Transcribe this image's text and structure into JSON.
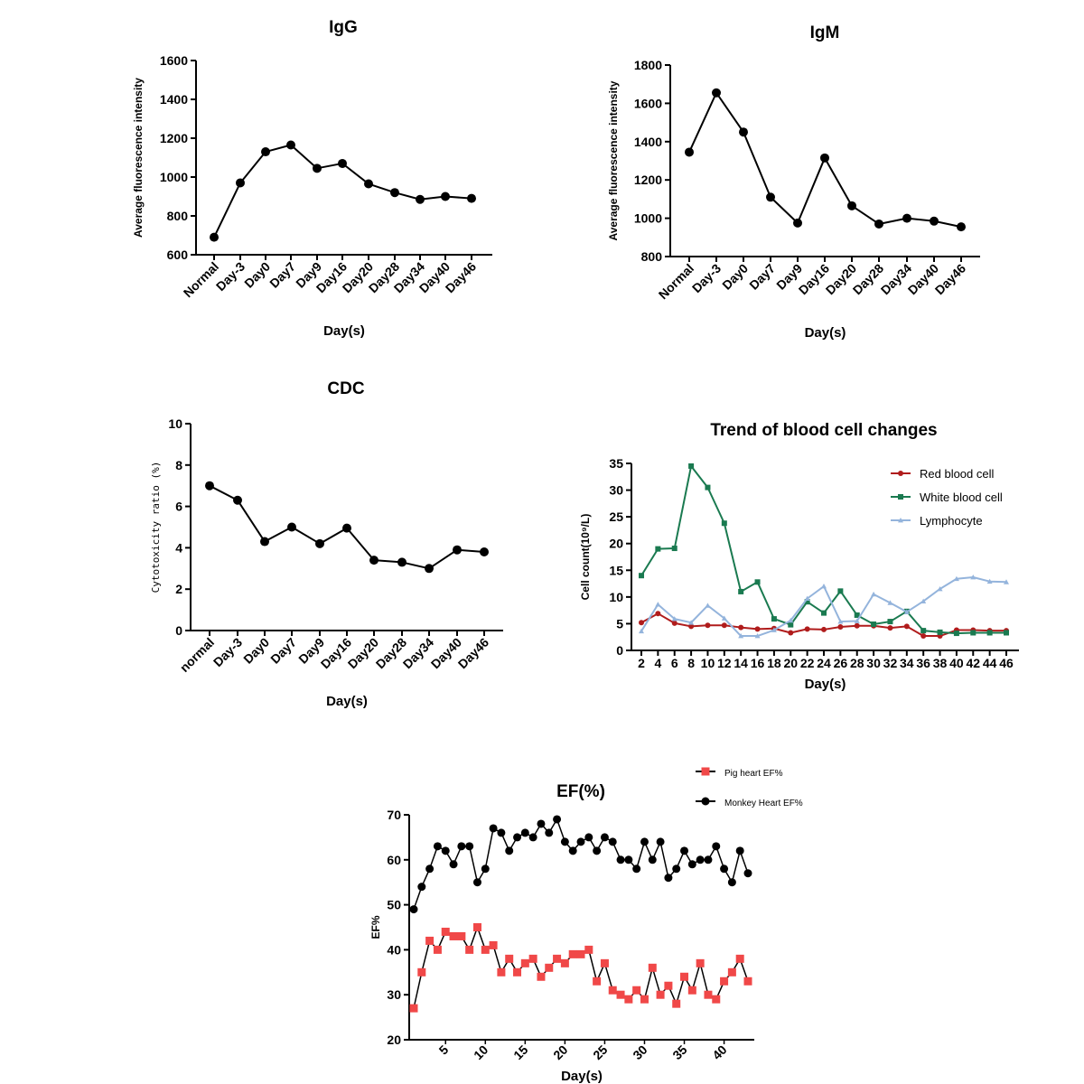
{
  "chart_data": [
    {
      "id": "igg",
      "type": "line",
      "title": "IgG",
      "xlabel": "Day(s)",
      "ylabel": "Average fluorescence intensity",
      "categories": [
        "Normal",
        "Day-3",
        "Day0",
        "Day7",
        "Day9",
        "Day16",
        "Day20",
        "Day28",
        "Day34",
        "Day40",
        "Day46"
      ],
      "values": [
        690,
        970,
        1130,
        1165,
        1045,
        1070,
        965,
        920,
        885,
        900,
        890
      ],
      "ylim": [
        600,
        1600
      ],
      "yticks": [
        600,
        800,
        1000,
        1200,
        1400,
        1600
      ],
      "grid": false,
      "color": "#000000"
    },
    {
      "id": "igm",
      "type": "line",
      "title": "IgM",
      "xlabel": "Day(s)",
      "ylabel": "Average fluorescence intensity",
      "categories": [
        "Normal",
        "Day-3",
        "Day0",
        "Day7",
        "Day9",
        "Day16",
        "Day20",
        "Day28",
        "Day34",
        "Day40",
        "Day46"
      ],
      "values": [
        1345,
        1655,
        1450,
        1110,
        975,
        1315,
        1065,
        970,
        1000,
        985,
        955
      ],
      "ylim": [
        800,
        1800
      ],
      "yticks": [
        800,
        1000,
        1200,
        1400,
        1600,
        1800
      ],
      "grid": false,
      "color": "#000000"
    },
    {
      "id": "cdc",
      "type": "line",
      "title": "CDC",
      "xlabel": "Day(s)",
      "ylabel": "Cytotoxicity ratio (%)",
      "categories": [
        "normal",
        "Day-3",
        "Day0",
        "Day7",
        "Day9",
        "Day16",
        "Day20",
        "Day28",
        "Day34",
        "Day40",
        "Day46"
      ],
      "values": [
        7.0,
        6.3,
        4.3,
        5.0,
        4.2,
        4.95,
        3.4,
        3.3,
        3.0,
        3.9,
        3.8
      ],
      "ylim": [
        0,
        10
      ],
      "yticks": [
        0,
        2,
        4,
        6,
        8,
        10
      ],
      "grid": false,
      "color": "#000000"
    },
    {
      "id": "blood",
      "type": "line",
      "title": "Trend of blood cell changes",
      "xlabel": "Day(s)",
      "ylabel": "Cell count(10⁹/L)",
      "x": [
        2,
        4,
        6,
        8,
        10,
        12,
        14,
        16,
        18,
        20,
        22,
        24,
        26,
        28,
        30,
        32,
        34,
        36,
        38,
        40,
        42,
        44,
        46
      ],
      "ylim": [
        0,
        35
      ],
      "yticks": [
        0,
        5,
        10,
        15,
        20,
        25,
        30,
        35
      ],
      "grid": false,
      "legend": "top-right",
      "series": [
        {
          "name": "Red blood cell",
          "color": "#b01c1c",
          "marker": "circle",
          "values": [
            5.2,
            6.9,
            5.1,
            4.5,
            4.7,
            4.7,
            4.3,
            4.0,
            4.1,
            3.3,
            4.0,
            3.9,
            4.4,
            4.6,
            4.6,
            4.2,
            4.5,
            2.7,
            2.7,
            3.8,
            3.8,
            3.7,
            3.7
          ]
        },
        {
          "name": "White blood cell",
          "color": "#1a7a50",
          "marker": "square",
          "values": [
            14,
            19,
            19.1,
            34.5,
            30.5,
            23.8,
            11,
            12.8,
            5.9,
            4.8,
            9.1,
            7,
            11.1,
            6.6,
            4.9,
            5.4,
            7.3,
            3.7,
            3.4,
            3.2,
            3.3,
            3.3,
            3.3
          ]
        },
        {
          "name": "Lymphocyte",
          "color": "#94b4dc",
          "marker": "triangle",
          "values": [
            3.6,
            8.6,
            5.9,
            5.2,
            8.4,
            6,
            2.7,
            2.7,
            3.8,
            5.6,
            9.7,
            12,
            5.4,
            5.5,
            10.5,
            8.9,
            7.2,
            9.2,
            11.5,
            13.4,
            13.7,
            12.9,
            12.8
          ]
        }
      ]
    },
    {
      "id": "ef",
      "type": "line",
      "title": "EF(%)",
      "xlabel": "Day(s)",
      "ylabel": "EF%",
      "x": [
        1,
        2,
        3,
        4,
        5,
        6,
        7,
        8,
        9,
        10,
        11,
        12,
        13,
        14,
        15,
        16,
        17,
        18,
        19,
        20,
        21,
        22,
        23,
        24,
        25,
        26,
        27,
        28,
        29,
        30,
        31,
        32,
        33,
        34,
        35,
        36,
        37,
        38,
        39,
        40,
        41,
        42,
        43
      ],
      "xticks": [
        5,
        10,
        15,
        20,
        25,
        30,
        35,
        40
      ],
      "ylim": [
        20,
        70
      ],
      "yticks": [
        20,
        30,
        40,
        50,
        60,
        70
      ],
      "grid": false,
      "legend": "top-right",
      "series": [
        {
          "name": "Pig heart EF%",
          "color": "#f04848",
          "marker": "square",
          "values": [
            27,
            35,
            42,
            40,
            44,
            43,
            43,
            40,
            45,
            40,
            41,
            35,
            38,
            35,
            37,
            38,
            34,
            36,
            38,
            37,
            39,
            39,
            40,
            33,
            37,
            31,
            30,
            29,
            31,
            29,
            36,
            30,
            32,
            28,
            34,
            31,
            37,
            30,
            29,
            33,
            35,
            38,
            33
          ]
        },
        {
          "name": "Monkey Heart EF%",
          "color": "#000000",
          "marker": "circle",
          "values": [
            49,
            54,
            58,
            63,
            62,
            59,
            63,
            63,
            55,
            58,
            67,
            66,
            62,
            65,
            66,
            65,
            68,
            66,
            69,
            64,
            62,
            64,
            65,
            62,
            65,
            64,
            60,
            60,
            58,
            64,
            60,
            64,
            56,
            58,
            62,
            59,
            60,
            60,
            63,
            58,
            55,
            62,
            57
          ]
        }
      ]
    }
  ]
}
